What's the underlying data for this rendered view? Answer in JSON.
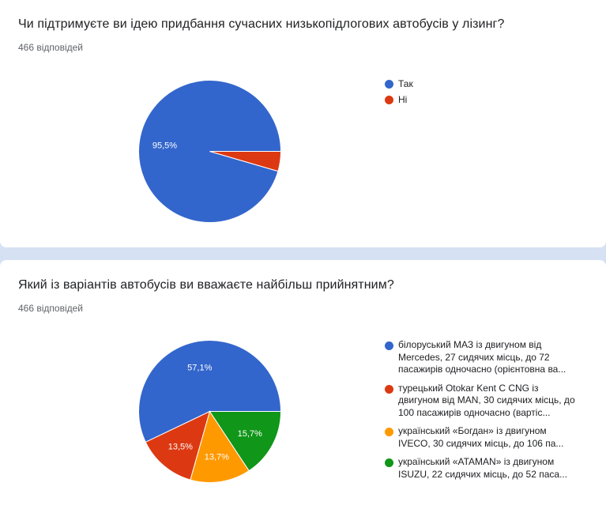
{
  "questions": [
    {
      "title": "Чи підтримуєте ви ідею придбання сучасних низькопідлогових автобусів у лізинг?",
      "responses": "466 відповідей"
    },
    {
      "title": "Який із варіантів автобусів ви вважаєте найбільш прийнятним?",
      "responses": "466 відповідей"
    }
  ],
  "chart_data": [
    {
      "type": "pie",
      "categories": [
        "Так",
        "Ні"
      ],
      "values": [
        95.5,
        4.5
      ],
      "data_labels": [
        "95,5%",
        ""
      ],
      "colors": [
        "#3366cc",
        "#dc3912"
      ],
      "legend": "right"
    },
    {
      "type": "pie",
      "categories": [
        "білоруський МАЗ із двигуном від Mercedes, 27 сидячих місць, до 72 пасажирів одночасно (орієнтовна ва...",
        "турецький Otokar Kent C CNG із двигуном від MAN, 30 сидячих місць, до 100 пасажирів одночасно (вартіс...",
        "український «Богдан» із двигуном IVECO, 30 сидячих місць, до 106 па...",
        "український «ATAMAN» із двигуном ISUZU, 22 сидячих місць, до 52 паса..."
      ],
      "values": [
        57.1,
        13.5,
        13.7,
        15.7
      ],
      "data_labels": [
        "57,1%",
        "13,5%",
        "13,7%",
        "15,7%"
      ],
      "colors": [
        "#3366cc",
        "#dc3912",
        "#ff9900",
        "#109618"
      ],
      "legend": "right"
    }
  ]
}
